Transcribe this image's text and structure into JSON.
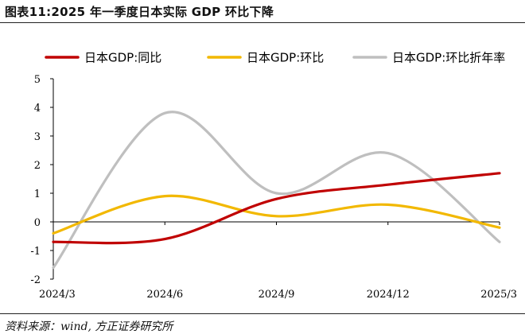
{
  "title": "图表11:2025 年一季度日本实际 GDP 环比下降",
  "source": "资料来源：wind, 方正证券研究所",
  "chart_data": {
    "type": "line",
    "categories": [
      "2024/3",
      "2024/6",
      "2024/9",
      "2024/12",
      "2025/3"
    ],
    "ylim": [
      -2,
      5
    ],
    "yticks": [
      "-2",
      "-1",
      "0",
      "1",
      "2",
      "3",
      "4",
      "5"
    ],
    "legend_position": "top",
    "series": [
      {
        "name": "日本GDP:同比",
        "color": "#C00000",
        "values": [
          -0.7,
          -0.6,
          0.8,
          1.3,
          1.7
        ]
      },
      {
        "name": "日本GDP:环比",
        "color": "#F2B800",
        "values": [
          -0.4,
          0.9,
          0.2,
          0.6,
          -0.2
        ]
      },
      {
        "name": "日本GDP:环比折年率",
        "color": "#BFBFBF",
        "values": [
          -1.6,
          3.8,
          1.0,
          2.4,
          -0.7
        ]
      }
    ]
  }
}
